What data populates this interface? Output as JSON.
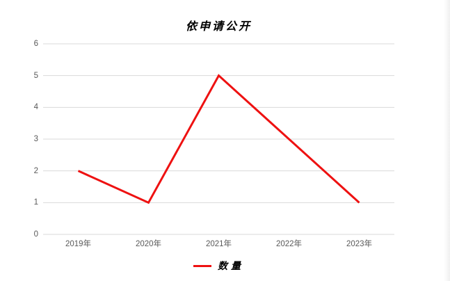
{
  "chart_data": {
    "type": "line",
    "title": "依申请公开",
    "categories": [
      "2019年",
      "2020年",
      "2021年",
      "2022年",
      "2023年"
    ],
    "series": [
      {
        "name": "数量",
        "values": [
          2,
          1,
          5,
          3,
          1
        ],
        "color": "#ee1111"
      }
    ],
    "ylim": [
      0,
      6
    ],
    "yticks": [
      0,
      1,
      2,
      3,
      4,
      5,
      6
    ],
    "grid": true,
    "legend_position": "bottom"
  },
  "colors": {
    "gridline": "#d9d9d9",
    "tick_label": "#595959",
    "title": "#000000",
    "series_red": "#ee1111",
    "background": "#ffffff"
  }
}
